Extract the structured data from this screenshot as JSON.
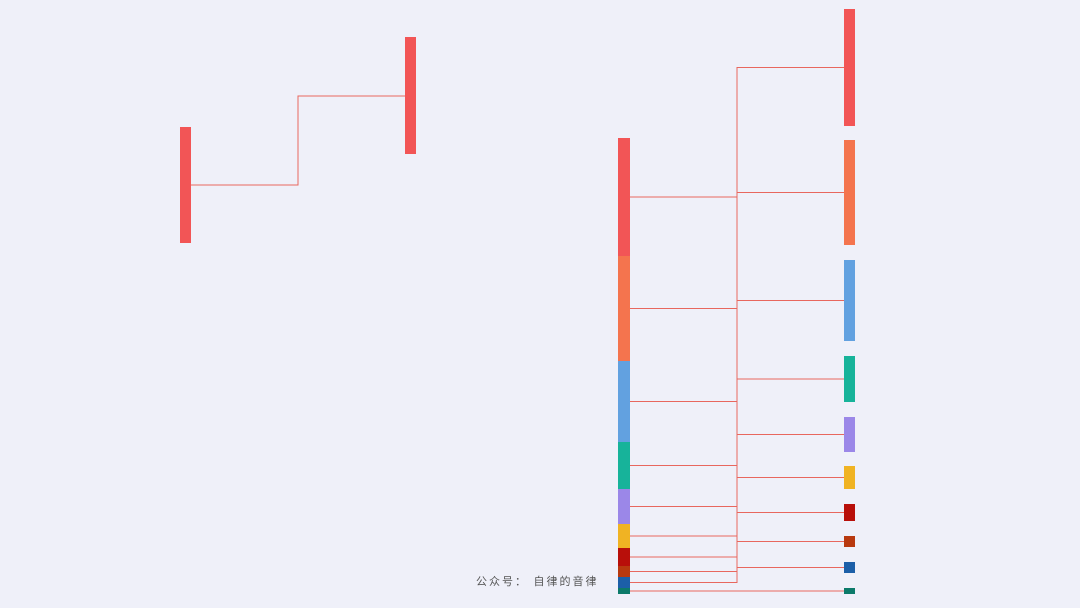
{
  "watermark": "公众号： 自律的音律"
}
